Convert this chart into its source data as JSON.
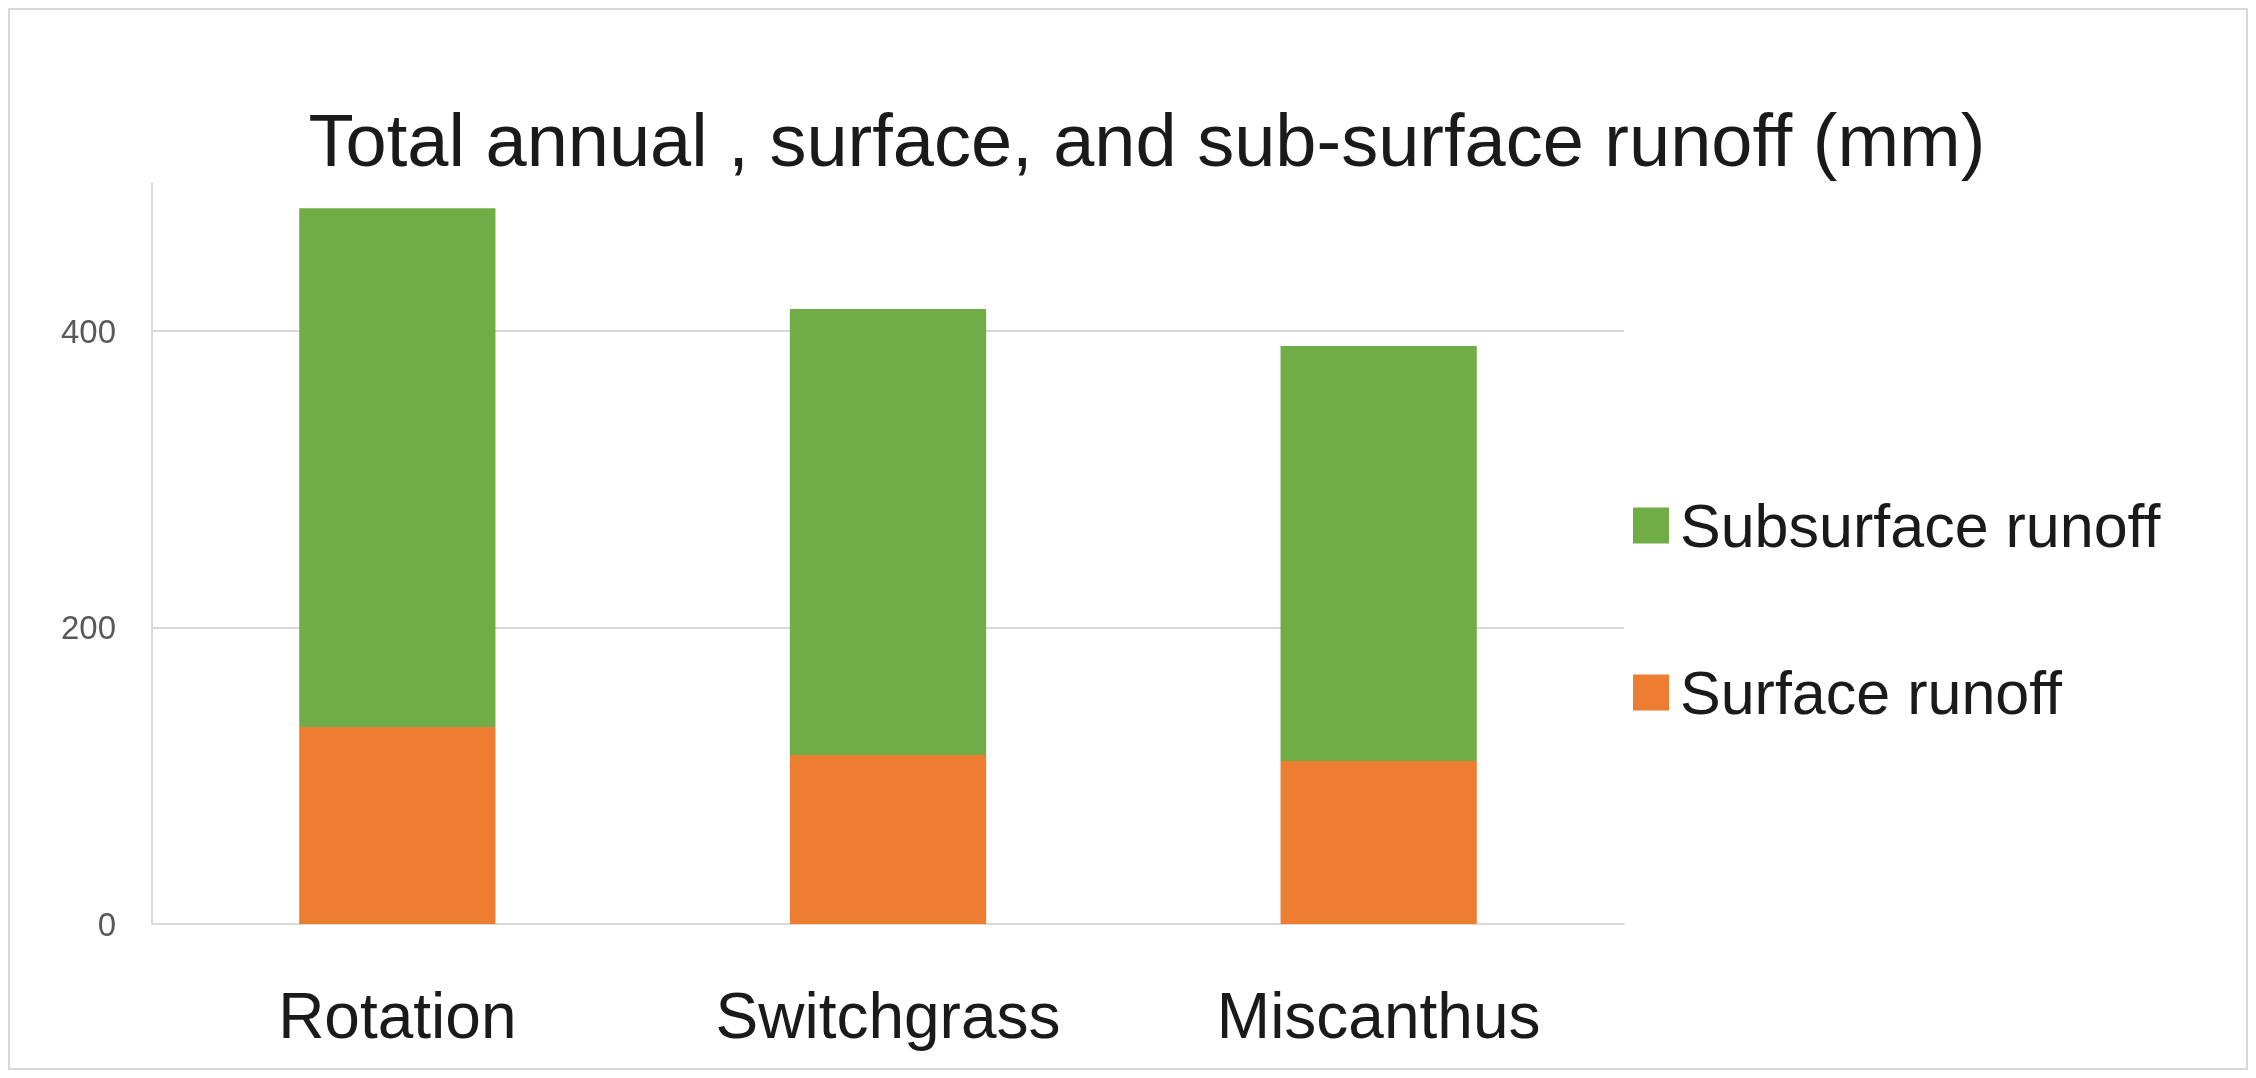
{
  "chart_data": {
    "type": "bar",
    "title": "Total annual , surface, and sub-surface runoff (mm)",
    "categories": [
      "Rotation",
      "Switchgrass",
      "Miscanthus"
    ],
    "series": [
      {
        "name": "Surface runoff",
        "color": "#ed7d31",
        "values": [
          133,
          114,
          110
        ]
      },
      {
        "name": "Subsurface runoff",
        "color": "#70ad47",
        "values": [
          350,
          301,
          280
        ]
      }
    ],
    "stacked": true,
    "ylim": [
      0,
      500
    ],
    "yticks": [
      0,
      200,
      400
    ],
    "grid": "y",
    "legend": "right"
  }
}
